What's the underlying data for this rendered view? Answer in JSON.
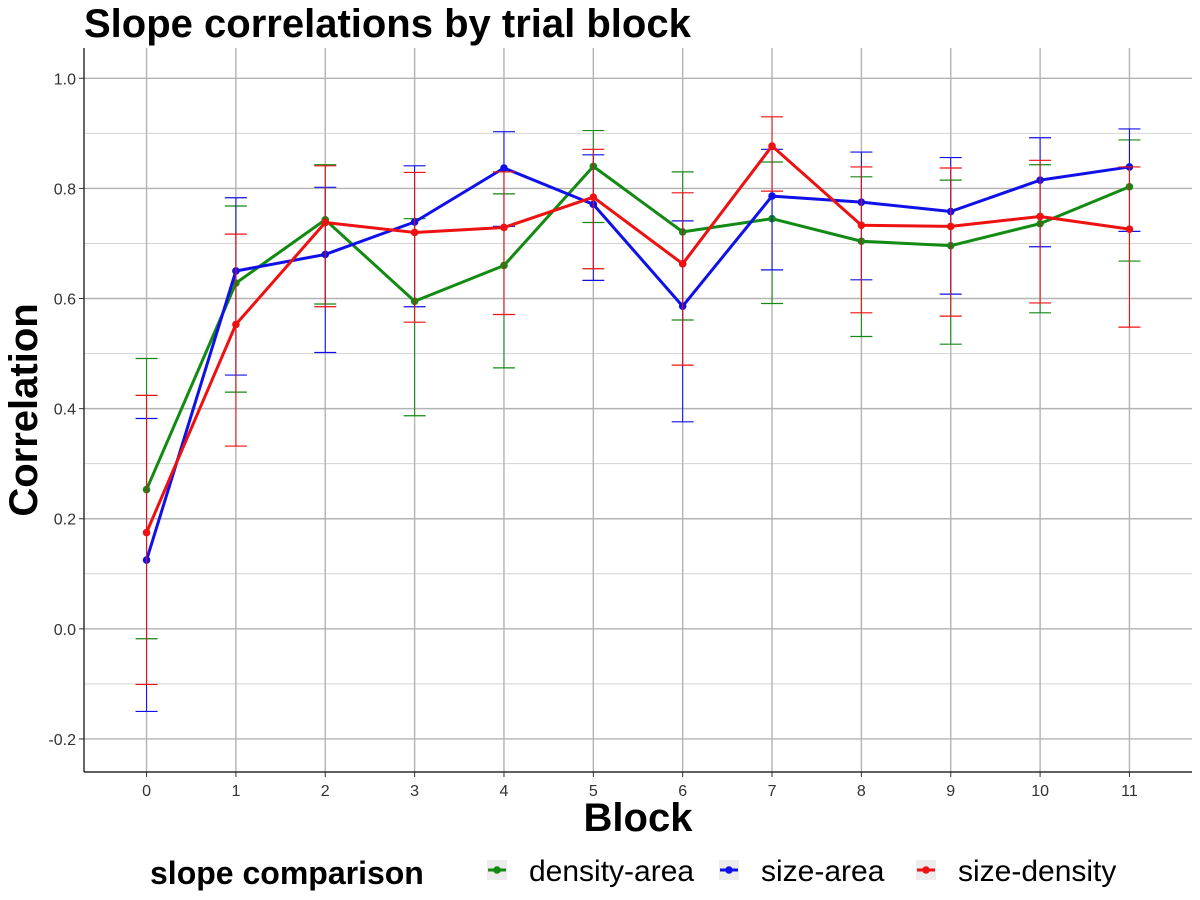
{
  "chart_data": {
    "type": "line",
    "title": "Slope correlations by trial block",
    "xlabel": "Block",
    "ylabel": "Correlation",
    "x": [
      0,
      1,
      2,
      3,
      4,
      5,
      6,
      7,
      8,
      9,
      10,
      11
    ],
    "xlim": [
      -0.7,
      11.7
    ],
    "ylim": [
      -0.26,
      1.055
    ],
    "y_ticks": [
      -0.2,
      0.0,
      0.2,
      0.4,
      0.6,
      0.8,
      1.0
    ],
    "y_tick_labels": [
      "-0.2",
      "0.0",
      "0.2",
      "0.4",
      "0.6",
      "0.8",
      "1.0"
    ],
    "x_tick_labels": [
      "0",
      "1",
      "2",
      "3",
      "4",
      "5",
      "6",
      "7",
      "8",
      "9",
      "10",
      "11"
    ],
    "grid": true,
    "legend_title": "slope comparison",
    "legend_position": "bottom",
    "series": [
      {
        "name": "density-area",
        "color": "#138a13",
        "values": [
          0.253,
          0.628,
          0.743,
          0.595,
          0.66,
          0.84,
          0.721,
          0.745,
          0.704,
          0.696,
          0.736,
          0.803
        ],
        "err_low": [
          -0.018,
          0.43,
          0.59,
          0.387,
          0.474,
          0.738,
          0.561,
          0.591,
          0.531,
          0.517,
          0.574,
          0.668
        ],
        "err_high": [
          0.491,
          0.768,
          0.843,
          0.745,
          0.79,
          0.905,
          0.83,
          0.848,
          0.821,
          0.815,
          0.843,
          0.888
        ]
      },
      {
        "name": "size-area",
        "color": "#1010e8",
        "values": [
          0.125,
          0.65,
          0.68,
          0.739,
          0.837,
          0.771,
          0.586,
          0.786,
          0.775,
          0.758,
          0.815,
          0.839
        ],
        "err_low": [
          -0.15,
          0.461,
          0.502,
          0.585,
          0.731,
          0.633,
          0.376,
          0.652,
          0.634,
          0.608,
          0.694,
          0.722
        ],
        "err_high": [
          0.382,
          0.783,
          0.802,
          0.841,
          0.903,
          0.861,
          0.741,
          0.871,
          0.866,
          0.856,
          0.892,
          0.908
        ]
      },
      {
        "name": "size-density",
        "color": "#ee1111",
        "values": [
          0.175,
          0.553,
          0.738,
          0.72,
          0.729,
          0.784,
          0.663,
          0.877,
          0.733,
          0.731,
          0.749,
          0.726
        ],
        "err_low": [
          -0.101,
          0.332,
          0.585,
          0.557,
          0.571,
          0.654,
          0.479,
          0.795,
          0.574,
          0.568,
          0.592,
          0.548
        ],
        "err_high": [
          0.424,
          0.717,
          0.841,
          0.829,
          0.83,
          0.871,
          0.792,
          0.93,
          0.839,
          0.837,
          0.851,
          0.839
        ]
      }
    ]
  }
}
